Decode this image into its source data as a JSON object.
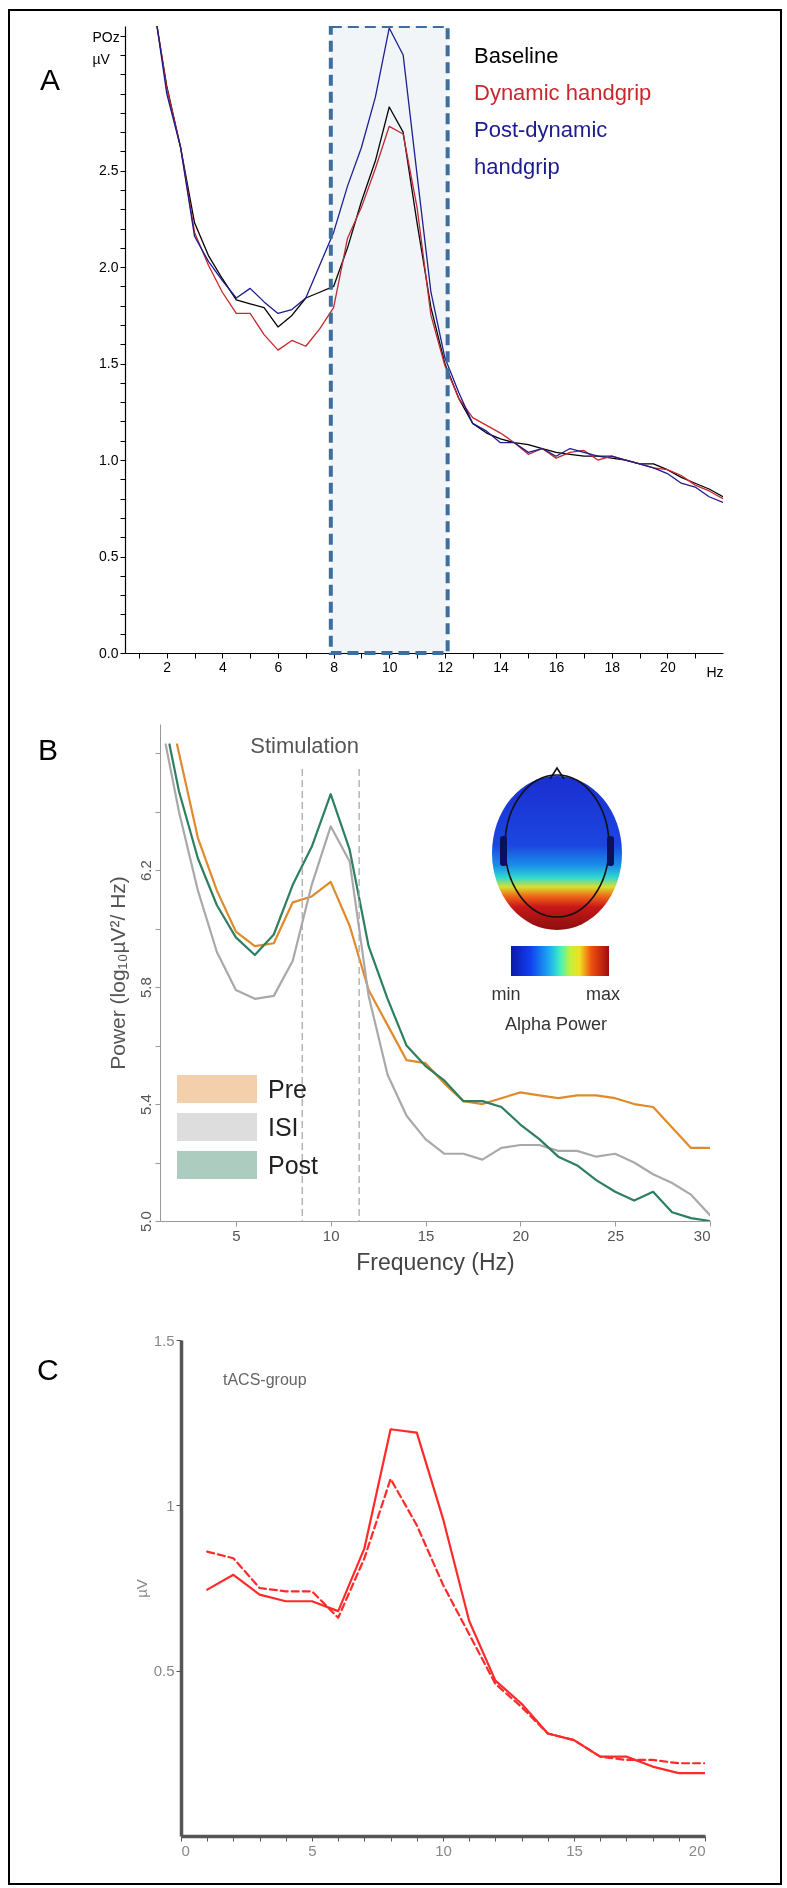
{
  "chart_data": [
    {
      "type": "line",
      "title": "A",
      "xlabel": "Hz",
      "ylabel": "POz µV",
      "x": [
        1.65,
        2,
        2.5,
        3,
        3.5,
        4,
        4.5,
        5,
        5.5,
        6,
        6.5,
        7,
        7.5,
        8,
        8.5,
        9,
        9.5,
        10,
        10.5,
        11,
        11.5,
        12,
        12.5,
        13,
        13.5,
        14,
        14.5,
        15,
        15.5,
        16,
        16.5,
        17,
        17.5,
        18,
        18.5,
        19,
        19.5,
        20,
        20.5,
        21,
        21.5,
        22
      ],
      "series": [
        {
          "name": "Baseline",
          "color": "#000000",
          "values": [
            3.25,
            2.94,
            2.62,
            2.23,
            2.06,
            1.94,
            1.83,
            1.81,
            1.79,
            1.69,
            1.75,
            1.84,
            1.87,
            1.9,
            2.1,
            2.34,
            2.55,
            2.83,
            2.7,
            2.23,
            1.79,
            1.5,
            1.32,
            1.19,
            1.14,
            1.11,
            1.09,
            1.08,
            1.06,
            1.04,
            1.03,
            1.02,
            1.02,
            1.01,
            1.0,
            0.98,
            0.98,
            0.95,
            0.91,
            0.88,
            0.85,
            0.81
          ]
        },
        {
          "name": "Dynamic handgrip",
          "color": "#c8282d",
          "values": [
            3.25,
            2.93,
            2.62,
            2.18,
            2.01,
            1.87,
            1.76,
            1.76,
            1.65,
            1.57,
            1.62,
            1.59,
            1.68,
            1.79,
            2.15,
            2.31,
            2.51,
            2.73,
            2.69,
            2.31,
            1.75,
            1.49,
            1.32,
            1.22,
            1.18,
            1.14,
            1.09,
            1.03,
            1.06,
            1.01,
            1.04,
            1.05,
            1.0,
            1.02,
            1.0,
            0.98,
            0.96,
            0.95,
            0.92,
            0.87,
            0.84,
            0.8
          ]
        },
        {
          "name": "Post-dynamic handgrip",
          "color": "#1c1c8f",
          "values": [
            3.25,
            2.9,
            2.62,
            2.16,
            2.03,
            1.93,
            1.84,
            1.89,
            1.82,
            1.76,
            1.78,
            1.84,
            2.01,
            2.18,
            2.42,
            2.62,
            2.88,
            3.24,
            3.1,
            2.48,
            1.87,
            1.53,
            1.35,
            1.19,
            1.15,
            1.09,
            1.09,
            1.04,
            1.06,
            1.02,
            1.06,
            1.04,
            1.02,
            1.02,
            1.0,
            0.98,
            0.96,
            0.93,
            0.88,
            0.86,
            0.81,
            0.78
          ]
        }
      ],
      "xlim": [
        0.5,
        22
      ],
      "ylim": [
        0,
        3.25
      ],
      "xticks": [
        {
          "value": 1,
          "label": null
        },
        2,
        {
          "value": 3,
          "label": null
        },
        4,
        {
          "value": 5,
          "label": null
        },
        6,
        {
          "value": 7,
          "label": null
        },
        8,
        {
          "value": 9,
          "label": null
        },
        10,
        {
          "value": 11,
          "label": null
        },
        12,
        {
          "value": 13,
          "label": null
        },
        14,
        {
          "value": 15,
          "label": null
        },
        16,
        {
          "value": 17,
          "label": null
        },
        18,
        {
          "value": 19,
          "label": null
        },
        20,
        {
          "value": 21,
          "label": null
        }
      ],
      "yticks": [
        {
          "value": 0,
          "label": "0.0"
        },
        {
          "value": 0.1,
          "label": null
        },
        {
          "value": 0.2,
          "label": null
        },
        {
          "value": 0.3,
          "label": null
        },
        {
          "value": 0.4,
          "label": null
        },
        {
          "value": 0.5,
          "label": "0.5"
        },
        {
          "value": 0.6,
          "label": null
        },
        {
          "value": 0.7,
          "label": null
        },
        {
          "value": 0.8,
          "label": null
        },
        {
          "value": 0.9,
          "label": null
        },
        {
          "value": 1,
          "label": "1.0"
        },
        {
          "value": 1.1,
          "label": null
        },
        {
          "value": 1.2,
          "label": null
        },
        {
          "value": 1.3,
          "label": null
        },
        {
          "value": 1.4,
          "label": null
        },
        {
          "value": 1.5,
          "label": "1.5"
        },
        {
          "value": 1.6,
          "label": null
        },
        {
          "value": 1.7,
          "label": null
        },
        {
          "value": 1.8,
          "label": null
        },
        {
          "value": 1.9,
          "label": null
        },
        {
          "value": 2,
          "label": "2.0"
        },
        {
          "value": 2.1,
          "label": null
        },
        {
          "value": 2.2,
          "label": null
        },
        {
          "value": 2.3,
          "label": null
        },
        {
          "value": 2.4,
          "label": null
        },
        {
          "value": 2.5,
          "label": "2.5"
        },
        {
          "value": 2.6,
          "label": null
        },
        {
          "value": 2.7,
          "label": null
        },
        {
          "value": 2.8,
          "label": null
        },
        {
          "value": 2.9,
          "label": null
        },
        {
          "value": 3,
          "label": null
        },
        {
          "value": 3.1,
          "label": null
        },
        {
          "value": 3.2,
          "label": null
        }
      ],
      "bands": [
        {
          "axis": "x",
          "from": 7.9,
          "to": 12.1,
          "color": "#3d6e9e"
        }
      ],
      "legend": "top right"
    },
    {
      "type": "line",
      "title": "B",
      "xlabel": "Frequency (Hz)",
      "ylabel": "Power (log₁₀µV²/ Hz)",
      "series": [
        {
          "name": "Pre",
          "color": "#e08a2c",
          "x": [
            1.9,
            3,
            4,
            5,
            6,
            7,
            8,
            9,
            10,
            11,
            12,
            13,
            14,
            15,
            16,
            17,
            18,
            19,
            20,
            21,
            22,
            23,
            24,
            25,
            26,
            27,
            28,
            29,
            30
          ],
          "values": [
            6.63,
            6.31,
            6.13,
            5.99,
            5.94,
            5.95,
            6.09,
            6.11,
            6.16,
            6.01,
            5.79,
            5.67,
            5.55,
            5.54,
            5.47,
            5.41,
            5.4,
            5.42,
            5.44,
            5.43,
            5.42,
            5.43,
            5.43,
            5.42,
            5.4,
            5.39,
            5.32,
            5.25,
            5.25
          ]
        },
        {
          "name": "ISI",
          "color": "#a9a9a9",
          "x": [
            1.3,
            2,
            3,
            4,
            5,
            6,
            7,
            8,
            9,
            10,
            11,
            12,
            13,
            14,
            15,
            16,
            17,
            18,
            19,
            20,
            21,
            22,
            23,
            24,
            25,
            26,
            27,
            28,
            29,
            30
          ],
          "values": [
            6.63,
            6.4,
            6.13,
            5.92,
            5.79,
            5.76,
            5.77,
            5.89,
            6.15,
            6.35,
            6.23,
            5.77,
            5.5,
            5.36,
            5.28,
            5.23,
            5.23,
            5.21,
            5.25,
            5.26,
            5.26,
            5.24,
            5.24,
            5.22,
            5.23,
            5.2,
            5.16,
            5.13,
            5.09,
            5.02
          ]
        },
        {
          "name": "Post",
          "color": "#2e7f5f",
          "x": [
            1.5,
            2,
            3,
            4,
            5,
            6,
            7,
            8,
            9,
            10,
            11,
            12,
            13,
            14,
            15,
            16,
            17,
            18,
            19,
            20,
            21,
            22,
            23,
            24,
            25,
            26,
            27,
            28,
            29,
            30
          ],
          "values": [
            6.63,
            6.47,
            6.24,
            6.08,
            5.97,
            5.91,
            5.98,
            6.15,
            6.28,
            6.46,
            6.27,
            5.94,
            5.76,
            5.6,
            5.53,
            5.48,
            5.41,
            5.41,
            5.39,
            5.33,
            5.28,
            5.22,
            5.19,
            5.14,
            5.1,
            5.07,
            5.1,
            5.03,
            5.01,
            5.0
          ]
        }
      ],
      "xlim": [
        1,
        30
      ],
      "ylim": [
        5.0,
        6.7
      ],
      "xticks": [
        5,
        10,
        15,
        20,
        25,
        30
      ],
      "yticks": [
        {
          "value": 5,
          "label": "5.0"
        },
        {
          "value": 5.2,
          "label": null
        },
        5.4,
        {
          "value": 5.6,
          "label": null
        },
        5.8,
        {
          "value": 6,
          "label": null
        },
        6.2,
        {
          "value": 6.4,
          "label": null
        },
        {
          "value": 6.6,
          "label": null
        }
      ],
      "ref_lines": [
        {
          "axis": "x",
          "value": 8.5,
          "label": "Stimulation",
          "color": "#aaaaaa",
          "line_style": "dashed"
        },
        {
          "axis": "x",
          "value": 11.5,
          "color": "#aaaaaa",
          "line_style": "dashed"
        }
      ],
      "annotations": [
        "min",
        "max",
        "Alpha Power"
      ],
      "legend": "bottom left"
    },
    {
      "type": "line",
      "title": "C",
      "ylabel": "µV",
      "x": [
        1,
        2,
        3,
        4,
        5,
        6,
        7,
        8,
        9,
        10,
        11,
        12,
        13,
        14,
        15,
        16,
        17,
        18,
        19,
        20
      ],
      "series": [
        {
          "color": "#ff2a2a",
          "values": [
            0.745,
            0.79,
            0.73,
            0.71,
            0.71,
            0.68,
            0.87,
            1.23,
            1.22,
            0.96,
            0.65,
            0.47,
            0.4,
            0.31,
            0.29,
            0.24,
            0.24,
            0.21,
            0.19,
            0.19
          ]
        },
        {
          "color": "#ff2a2a",
          "line_style": "dashed",
          "values": [
            0.86,
            0.84,
            0.75,
            0.74,
            0.74,
            0.66,
            0.84,
            1.08,
            0.94,
            0.76,
            0.61,
            0.46,
            0.39,
            0.31,
            0.29,
            0.24,
            0.23,
            0.23,
            0.22,
            0.22
          ]
        }
      ],
      "xlim": [
        0,
        20
      ],
      "ylim": [
        0,
        1.5
      ],
      "xticks": [
        0,
        {
          "value": 1,
          "label": null
        },
        {
          "value": 2,
          "label": null
        },
        {
          "value": 3,
          "label": null
        },
        {
          "value": 4,
          "label": null
        },
        5,
        {
          "value": 6,
          "label": null
        },
        {
          "value": 7,
          "label": null
        },
        {
          "value": 8,
          "label": null
        },
        {
          "value": 9,
          "label": null
        },
        10,
        {
          "value": 11,
          "label": null
        },
        {
          "value": 12,
          "label": null
        },
        {
          "value": 13,
          "label": null
        },
        {
          "value": 14,
          "label": null
        },
        15,
        {
          "value": 16,
          "label": null
        },
        {
          "value": 17,
          "label": null
        },
        {
          "value": 18,
          "label": null
        },
        {
          "value": 19,
          "label": null
        },
        20
      ],
      "yticks": [
        0.5,
        1,
        1.5
      ],
      "annotations": [
        "tACS-group"
      ]
    }
  ]
}
